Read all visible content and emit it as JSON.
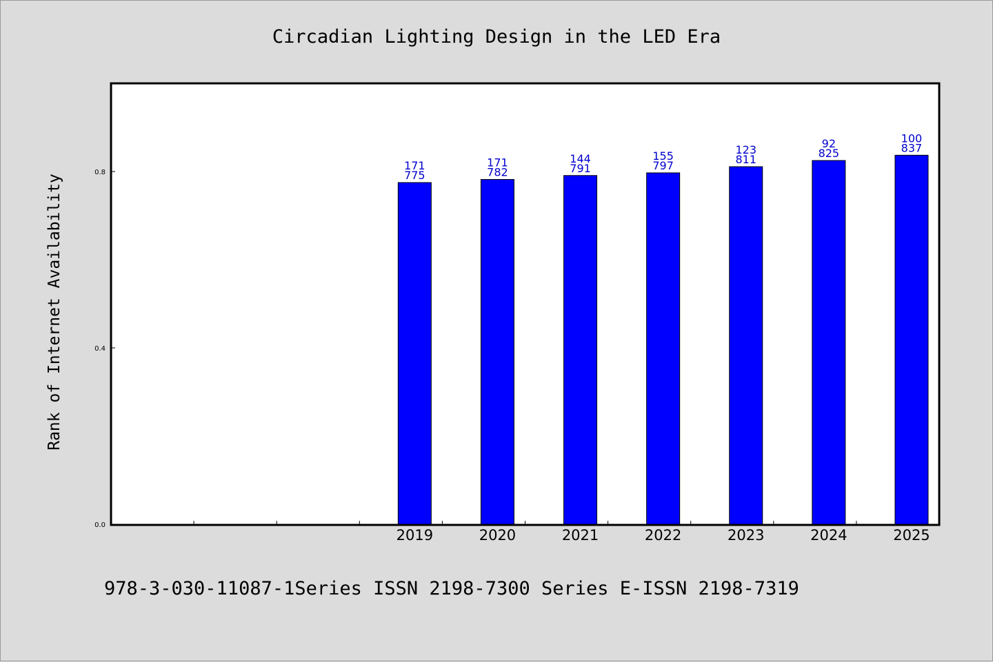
{
  "chart_data": {
    "type": "bar",
    "title": "Circadian Lighting Design in the LED Era",
    "xlabel": "",
    "ylabel": "Rank of Internet Availability",
    "ylim": [
      0.0,
      1.0
    ],
    "yticks": [
      0.0,
      0.4,
      0.8
    ],
    "ytick_labels": [
      "0.0",
      "0.4",
      "0.8"
    ],
    "categories": [
      "",
      "",
      "",
      "2019",
      "2020",
      "2021",
      "2022",
      "2023",
      "2024",
      "2025"
    ],
    "series": [
      {
        "color": "#0000ff",
        "values": [
          null,
          null,
          null,
          0.775,
          0.782,
          0.791,
          0.797,
          0.811,
          0.825,
          0.837
        ],
        "labels_top": [
          "",
          "",
          "",
          "171",
          "171",
          "144",
          "155",
          "123",
          "92",
          "100"
        ],
        "labels_bottom": [
          "",
          "",
          "",
          "775",
          "782",
          "791",
          "797",
          "811",
          "825",
          "837"
        ]
      }
    ],
    "grid": false,
    "legend": "none"
  },
  "footer": {
    "text": "978-3-030-11087-1Series ISSN 2198-7300 Series E-ISSN 2198-7319"
  },
  "colors": {
    "background": "#dcdcdc",
    "plot_background": "#ffffff",
    "bar": "#0000ff",
    "data_label": "#0000cc"
  }
}
